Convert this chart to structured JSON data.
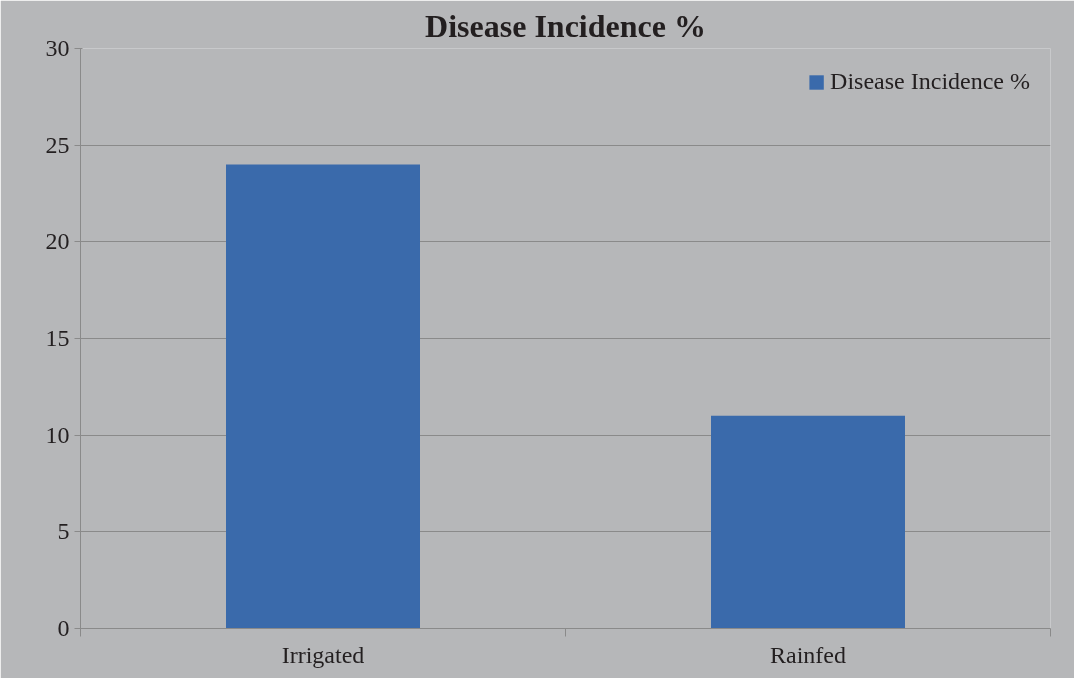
{
  "chart_data": {
    "type": "bar",
    "title": "Disease Incidence %",
    "categories": [
      "Irrigated",
      "Rainfed"
    ],
    "series": [
      {
        "name": "Disease Incidence %",
        "color": "#3a6aab",
        "values": [
          24,
          11
        ]
      }
    ],
    "ylim": [
      0,
      30
    ],
    "yticks": [
      0,
      5,
      10,
      15,
      20,
      25,
      30
    ],
    "grid": "y",
    "legend": "top right"
  }
}
